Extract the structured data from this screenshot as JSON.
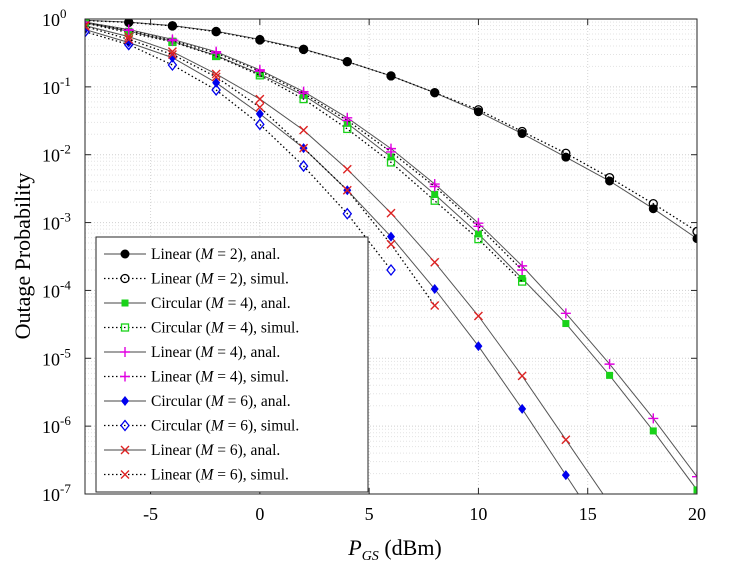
{
  "chart_data": {
    "type": "line",
    "title": "",
    "xlabel": "P_GS (dBm)",
    "xlabel_main": "P",
    "xlabel_sub": "GS",
    "xlabel_unit": " (dBm)",
    "ylabel": "Outage Probability",
    "xlim": [
      -8,
      20
    ],
    "ylim_log10": [
      -7,
      0
    ],
    "yscale": "log",
    "grid": true,
    "legend_position": "lower-left",
    "x_tick_labels": [
      "-5",
      "0",
      "5",
      "10",
      "15",
      "20"
    ],
    "x_tick_values": [
      -5,
      0,
      5,
      10,
      15,
      20
    ],
    "y_tick_labels": [
      {
        "base": "10",
        "exp": "0"
      },
      {
        "base": "10",
        "exp": "-1"
      },
      {
        "base": "10",
        "exp": "-2"
      },
      {
        "base": "10",
        "exp": "-3"
      },
      {
        "base": "10",
        "exp": "-4"
      },
      {
        "base": "10",
        "exp": "-5"
      },
      {
        "base": "10",
        "exp": "-6"
      },
      {
        "base": "10",
        "exp": "-7"
      }
    ],
    "series": [
      {
        "name": "Linear (M = 2), anal.",
        "label_pre": "Linear (",
        "label_var": "M",
        "label_post": " = 2), anal.",
        "color": "#000000",
        "marker": "filled-circle",
        "dash": "solid",
        "x": [
          -8,
          -6,
          -4,
          -2,
          0,
          2,
          4,
          6,
          8,
          10,
          12,
          14,
          16,
          18,
          20
        ],
        "y": [
          0.96,
          0.9,
          0.8,
          0.66,
          0.5,
          0.36,
          0.235,
          0.145,
          0.082,
          0.043,
          0.0205,
          0.0092,
          0.0041,
          0.0016,
          0.00058
        ]
      },
      {
        "name": "Linear (M = 2), simul.",
        "label_pre": "Linear (",
        "label_var": "M",
        "label_post": " = 2), simul.",
        "color": "#000000",
        "marker": "open-circle",
        "dash": "dotted",
        "x": [
          -8,
          -6,
          -4,
          -2,
          0,
          2,
          4,
          6,
          8,
          10,
          12,
          14,
          16,
          18,
          20
        ],
        "y": [
          0.95,
          0.89,
          0.79,
          0.65,
          0.49,
          0.355,
          0.235,
          0.145,
          0.082,
          0.046,
          0.022,
          0.0105,
          0.0046,
          0.0019,
          0.00074
        ]
      },
      {
        "name": "Circular (M = 4), anal.",
        "label_pre": "Circular (",
        "label_var": "M",
        "label_post": " = 4), anal.",
        "color": "#19d219",
        "marker": "filled-square",
        "dash": "solid",
        "x": [
          -8,
          -6,
          -4,
          -2,
          0,
          2,
          4,
          6,
          8,
          10,
          12,
          14,
          16,
          18,
          20
        ],
        "y": [
          0.88,
          0.66,
          0.47,
          0.29,
          0.155,
          0.075,
          0.029,
          0.0093,
          0.0026,
          0.00068,
          0.00015,
          3.25e-05,
          5.6e-06,
          8.5e-07,
          1.15e-07
        ]
      },
      {
        "name": "Circular (M = 4), simul.",
        "label_pre": "Circular (",
        "label_var": "M",
        "label_post": " = 4), simul.",
        "color": "#19d219",
        "marker": "open-square",
        "dash": "dotted",
        "x": [
          -8,
          -6,
          -4,
          -2,
          0,
          2,
          4,
          6,
          8,
          10,
          12
        ],
        "y": [
          0.87,
          0.63,
          0.46,
          0.285,
          0.148,
          0.066,
          0.024,
          0.0077,
          0.0021,
          0.00057,
          0.000135
        ]
      },
      {
        "name": "Linear (M = 4), anal.",
        "label_pre": "Linear (",
        "label_var": "M",
        "label_post": " = 4), anal.",
        "color": "#e100e1",
        "marker": "plus",
        "dash": "solid",
        "x": [
          -8,
          -6,
          -4,
          -2,
          0,
          2,
          4,
          6,
          8,
          10,
          12,
          14,
          16,
          18,
          20
        ],
        "y": [
          0.9,
          0.7,
          0.5,
          0.33,
          0.178,
          0.085,
          0.035,
          0.0123,
          0.0037,
          0.00098,
          0.00023,
          4.6e-05,
          8.2e-06,
          1.3e-06,
          1.8e-07
        ]
      },
      {
        "name": "Linear (M = 4), simul.",
        "label_pre": "Linear (",
        "label_var": "M",
        "label_post": " = 4), simul.",
        "color": "#e100e1",
        "marker": "plus",
        "dash": "dotted",
        "x": [
          -8,
          -6,
          -4,
          -2,
          0,
          2,
          4,
          6,
          8,
          10,
          12
        ],
        "y": [
          0.89,
          0.68,
          0.48,
          0.315,
          0.17,
          0.08,
          0.032,
          0.011,
          0.0034,
          0.00088,
          0.0002
        ]
      },
      {
        "name": "Circular (M = 6), anal.",
        "label_pre": "Circular (",
        "label_var": "M",
        "label_post": " = 6), anal.",
        "color": "#0000ee",
        "marker": "filled-diamond",
        "dash": "solid",
        "x": [
          -8,
          -6,
          -4,
          -2,
          0,
          2,
          4,
          6,
          8,
          10,
          12,
          14
        ],
        "y": [
          0.7,
          0.45,
          0.27,
          0.115,
          0.04,
          0.0125,
          0.003,
          0.00062,
          0.000105,
          1.51e-05,
          1.8e-06,
          1.9e-07
        ]
      },
      {
        "name": "Circular (M = 6), simul.",
        "label_pre": "Circular (",
        "label_var": "M",
        "label_post": " = 6), simul.",
        "color": "#0000ee",
        "marker": "open-diamond",
        "dash": "dotted",
        "x": [
          -8,
          -6,
          -4,
          -2,
          0,
          2,
          4,
          6
        ],
        "y": [
          0.65,
          0.42,
          0.21,
          0.09,
          0.028,
          0.0068,
          0.00135,
          0.0002
        ]
      },
      {
        "name": "Linear (M = 6), anal.",
        "label_pre": "Linear (",
        "label_var": "M",
        "label_post": " = 6), anal.",
        "color": "#dd2222",
        "marker": "x",
        "dash": "solid",
        "x": [
          -8,
          -6,
          -4,
          -2,
          0,
          2,
          4,
          6,
          8,
          10,
          12,
          14
        ],
        "y": [
          0.8,
          0.55,
          0.33,
          0.155,
          0.066,
          0.023,
          0.0061,
          0.00138,
          0.00026,
          4.2e-05,
          5.5e-06,
          6.3e-07
        ]
      },
      {
        "name": "Linear (M = 6), simul.",
        "label_pre": "Linear (",
        "label_var": "M",
        "label_post": " = 6), simul.",
        "color": "#dd2222",
        "marker": "x",
        "dash": "dotted",
        "x": [
          -8,
          -6,
          -4,
          -2,
          0,
          2,
          4,
          6,
          8
        ],
        "y": [
          0.78,
          0.5,
          0.3,
          0.14,
          0.05,
          0.0125,
          0.003,
          0.00048,
          6e-05
        ]
      }
    ]
  }
}
